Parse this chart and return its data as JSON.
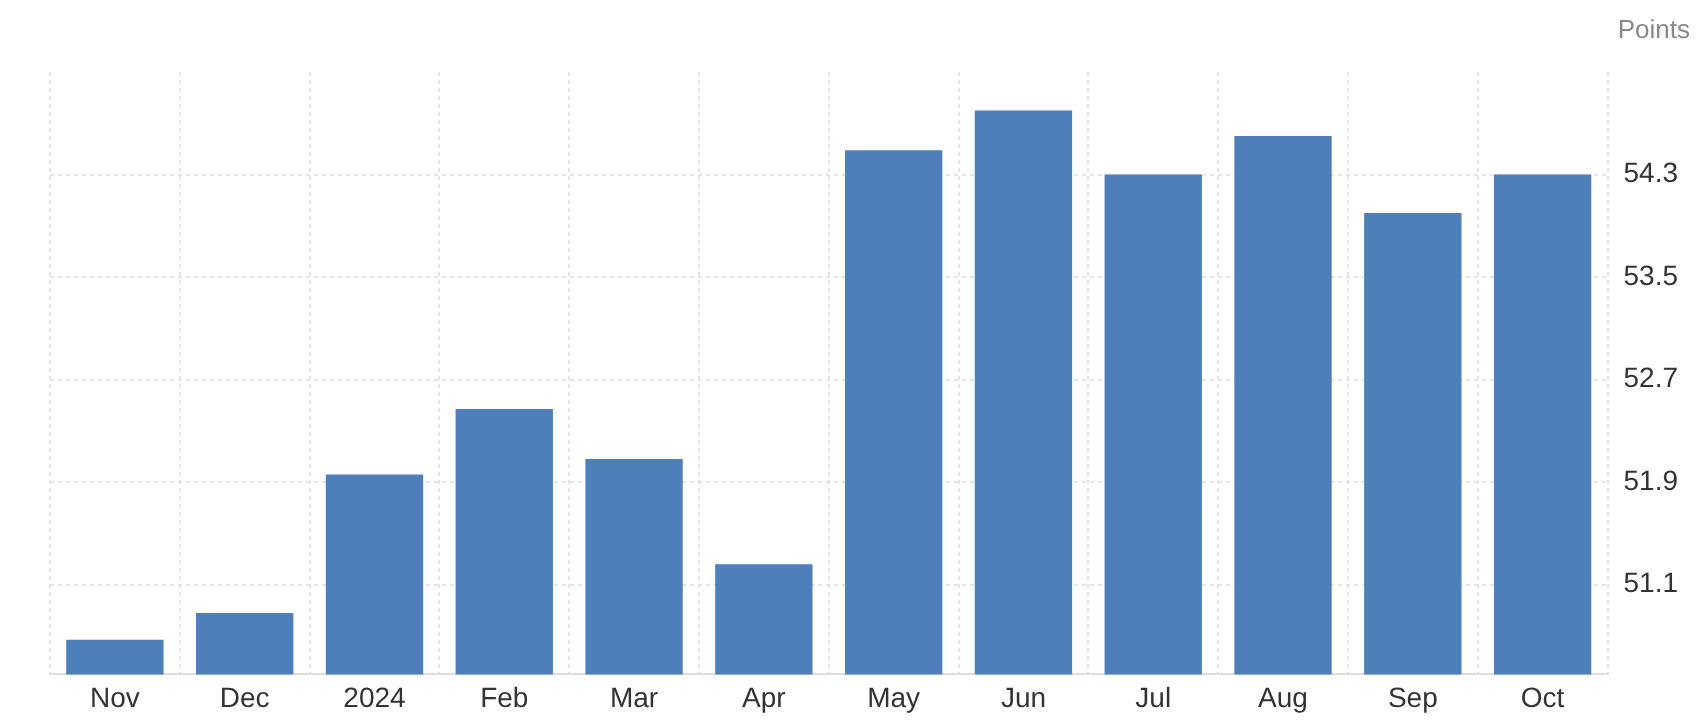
{
  "chart_data": {
    "type": "bar",
    "ylabel": "Points",
    "categories": [
      "Nov",
      "Dec",
      "2024",
      "Feb",
      "Mar",
      "Apr",
      "May",
      "Jun",
      "Jul",
      "Aug",
      "Sep",
      "Oct"
    ],
    "values": [
      50.67,
      50.88,
      51.96,
      52.47,
      52.08,
      51.26,
      54.49,
      54.8,
      54.3,
      54.6,
      54.0,
      54.3
    ],
    "color": "#4e7fba",
    "ylim": [
      50.4,
      55.1
    ],
    "yticks": [
      51.1,
      51.9,
      52.7,
      53.5,
      54.3
    ],
    "grid": true,
    "legend": false
  }
}
